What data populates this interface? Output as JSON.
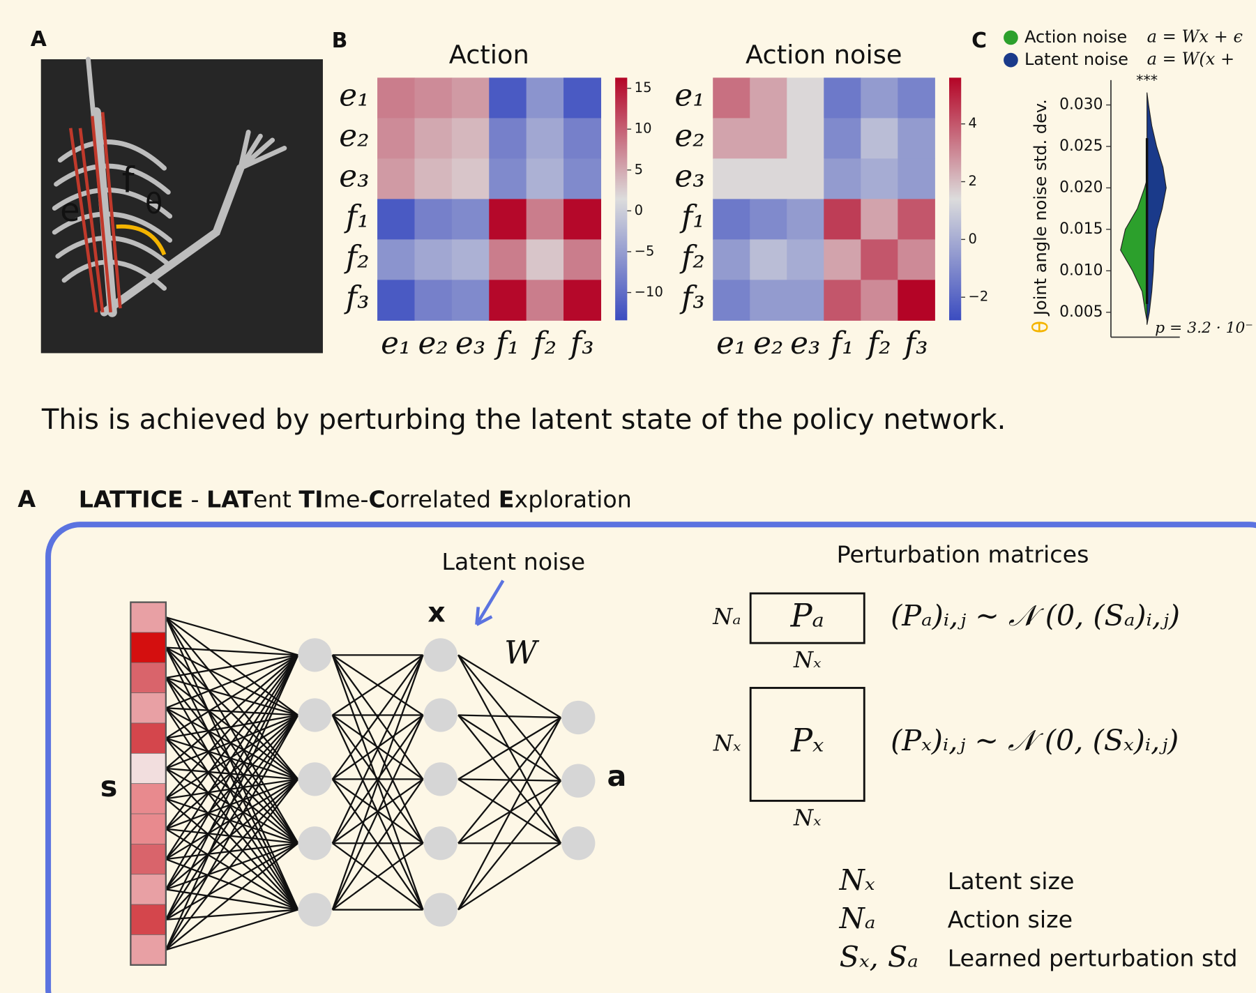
{
  "panel_labels": {
    "a": "A",
    "b": "B",
    "c": "C"
  },
  "skeleton": {
    "labels": [
      "e",
      "f",
      "θ"
    ]
  },
  "chart_data": [
    {
      "type": "heatmap",
      "title": "Action",
      "rows": [
        "e₁",
        "e₂",
        "e₃",
        "f₁",
        "f₂",
        "f₃"
      ],
      "columns": [
        "e₁",
        "e₂",
        "e₃",
        "f₁",
        "f₂",
        "f₃"
      ],
      "values": [
        [
          8,
          7,
          6,
          -12,
          -6,
          -12
        ],
        [
          7,
          5,
          4,
          -8,
          -4,
          -8
        ],
        [
          6,
          4,
          3,
          -7,
          -3,
          -7
        ],
        [
          -12,
          -8,
          -7,
          16,
          8,
          16
        ],
        [
          -6,
          -4,
          -3,
          8,
          3,
          8
        ],
        [
          -12,
          -8,
          -7,
          16,
          8,
          16
        ]
      ],
      "vlim": [
        -13.4,
        16.3
      ],
      "colorbar_ticks": [
        {
          "value": -10,
          "label": "−10"
        },
        {
          "value": -5,
          "label": "−5"
        },
        0,
        5,
        10,
        15
      ],
      "colors": [
        "#3b4cc0",
        "#dcdcdc",
        "#b40426"
      ]
    },
    {
      "type": "heatmap",
      "title": "Action noise",
      "rows": [
        "e₁",
        "e₂",
        "e₃",
        "f₁",
        "f₂",
        "f₃"
      ],
      "columns": [
        "e₁",
        "e₂",
        "e₃",
        "f₁",
        "f₂",
        "f₃"
      ],
      "values": [
        [
          3.5,
          2.5,
          1.5,
          -1.5,
          -0.5,
          -1.2
        ],
        [
          2.5,
          2.5,
          1.5,
          -1,
          0.5,
          -0.5
        ],
        [
          1.5,
          1.5,
          1.5,
          -0.5,
          0,
          -0.5
        ],
        [
          -1.5,
          -1,
          -0.5,
          4.5,
          2.5,
          4
        ],
        [
          -0.5,
          0.5,
          0,
          2.5,
          4,
          3
        ],
        [
          -1.2,
          -0.5,
          -0.5,
          4,
          3,
          5.6
        ]
      ],
      "vlim": [
        -2.8,
        5.6
      ],
      "colorbar_ticks": [
        {
          "value": -2,
          "label": "−2"
        },
        0,
        2,
        4
      ],
      "colors": [
        "#3b4cc0",
        "#dcdcdc",
        "#b40426"
      ]
    },
    {
      "type": "violin",
      "ylabel_symbol": "θ",
      "ylabel": "Joint angle noise std. dev.",
      "ylim": [
        0.002,
        0.033
      ],
      "yticks": [
        0.005,
        {
          "value": 0.01,
          "label": "0.010"
        },
        0.015,
        {
          "value": 0.02,
          "label": "0.020"
        },
        0.025,
        {
          "value": 0.03,
          "label": "0.030"
        }
      ],
      "significance": "***",
      "p_value": "p = 3.2 · 10⁻",
      "series": [
        {
          "name": "Action noise",
          "formula": "a = Wx + ϵ",
          "color": "#2ca02c",
          "side": "left",
          "x": [
            0.004,
            0.005,
            0.0075,
            0.01,
            0.0125,
            0.015,
            0.0175,
            0.02,
            0.021
          ],
          "values": [
            0,
            2,
            6,
            18,
            33,
            27,
            12,
            3,
            0
          ]
        },
        {
          "name": "Latent noise",
          "formula": "a = W(x + ",
          "color": "#1a3a8a",
          "side": "right",
          "x": [
            0.0035,
            0.005,
            0.0075,
            0.01,
            0.0125,
            0.015,
            0.0175,
            0.02,
            0.0225,
            0.025,
            0.0275,
            0.03,
            0.0315
          ],
          "values": [
            0,
            3,
            6,
            8,
            9,
            12,
            19,
            24,
            20,
            12,
            6,
            2,
            0
          ]
        }
      ]
    }
  ],
  "caption": "This is achieved by perturbing the latent state of the policy network.",
  "section": {
    "label": "A",
    "title": [
      {
        "text": "LATTICE",
        "bold": true
      },
      {
        "text": " - ",
        "bold": false
      },
      {
        "text": "LAT",
        "bold": true
      },
      {
        "text": "ent ",
        "bold": false
      },
      {
        "text": "TI",
        "bold": true
      },
      {
        "text": "me-",
        "bold": false
      },
      {
        "text": "C",
        "bold": true
      },
      {
        "text": "orrelated ",
        "bold": false
      },
      {
        "text": "E",
        "bold": true
      },
      {
        "text": "xploration",
        "bold": false
      }
    ]
  },
  "diagram": {
    "input": "s",
    "latent": "x",
    "weights": "W",
    "output": "a",
    "noise_label": "Latent noise",
    "matrices_title": "Perturbation matrices",
    "matrices": [
      {
        "row_label": "Nₐ",
        "name": "Pₐ",
        "col_label": "Nₓ",
        "formula": "(Pₐ)ᵢ,ⱼ ∼ 𝒩 (0, (Sₐ)ᵢ,ⱼ)"
      },
      {
        "row_label": "Nₓ",
        "name": "Pₓ",
        "col_label": "Nₓ",
        "formula": "(Pₓ)ᵢ,ⱼ ∼ 𝒩 (0, (Sₓ)ᵢ,ⱼ)"
      }
    ],
    "legend": [
      {
        "symbol": "Nₓ",
        "text": "Latent size"
      },
      {
        "symbol": "Nₐ",
        "text": "Action size"
      },
      {
        "symbol": "Sₓ, Sₐ",
        "text": "Learned perturbation std"
      }
    ]
  }
}
